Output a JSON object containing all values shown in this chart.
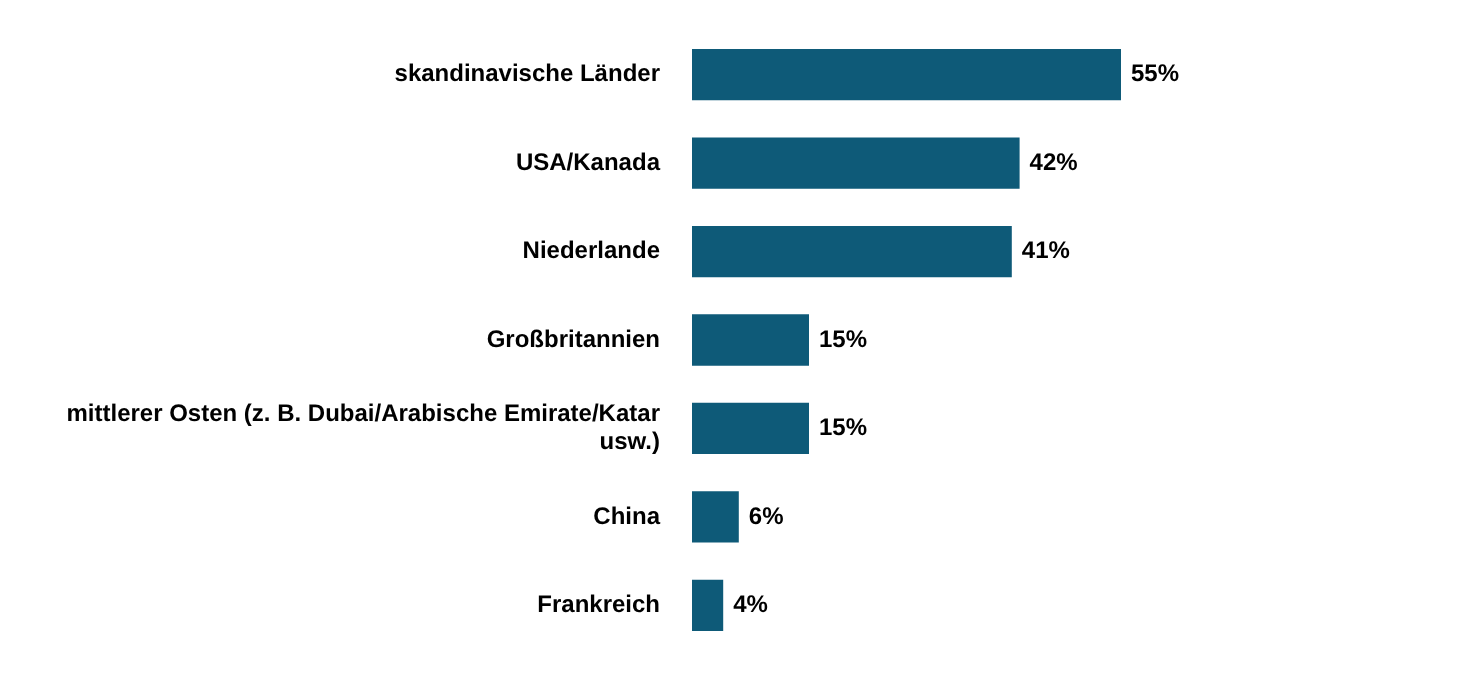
{
  "chart_data": {
    "type": "bar",
    "orientation": "horizontal",
    "categories": [
      "skandinavische Länder",
      "USA/Kanada",
      "Niederlande",
      "Großbritannien",
      "mittlerer Osten (z. B. Dubai/Arabische Emirate/Katar usw.)",
      "China",
      "Frankreich"
    ],
    "values": [
      55,
      42,
      41,
      15,
      15,
      6,
      4
    ],
    "value_labels": [
      "55%",
      "42%",
      "41%",
      "15%",
      "15%",
      "6%",
      "4%"
    ],
    "color": "#0e5a78",
    "legend": false
  }
}
